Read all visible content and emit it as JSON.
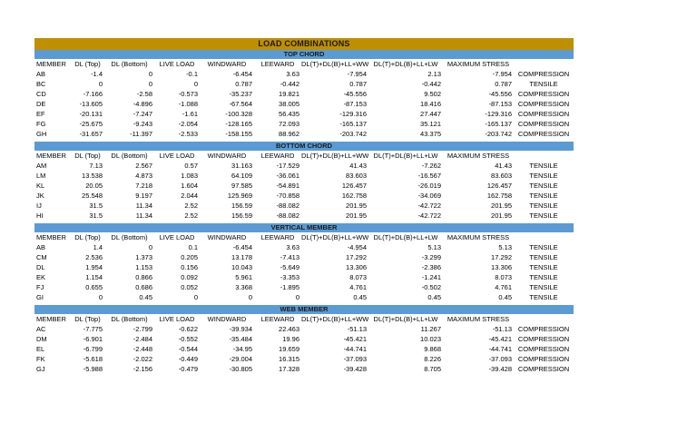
{
  "title": "LOAD COMBINATIONS",
  "columns": [
    "MEMBER",
    "DL (Top)",
    "DL (Bottom)",
    "LIVE LOAD",
    "WINDWARD",
    "LEEWARD",
    "DL(T)+DL(B)+LL+WW",
    "DL(T)+DL(B)+LL+LW",
    "MAXIMUM STRESS",
    ""
  ],
  "colors": {
    "title_bg": "#BF8F00",
    "section_bg": "#5B9BD5",
    "text": "#000000",
    "page_bg": "#FFFFFF"
  },
  "sections": [
    {
      "name": "TOP CHORD",
      "rows": [
        {
          "member": "AB",
          "values": [
            "-1.4",
            "0",
            "-0.1",
            "-6.454",
            "3.63",
            "-7.954",
            "2.13",
            "-7.954"
          ],
          "type": "COMPRESSION"
        },
        {
          "member": "BC",
          "values": [
            "0",
            "0",
            "0",
            "0.787",
            "-0.442",
            "0.787",
            "-0.442",
            "0.787"
          ],
          "type": "TENSILE"
        },
        {
          "member": "CD",
          "values": [
            "-7.166",
            "-2.58",
            "-0.573",
            "-35.237",
            "19.821",
            "-45.556",
            "9.502",
            "-45.556"
          ],
          "type": "COMPRESSION"
        },
        {
          "member": "DE",
          "values": [
            "-13.605",
            "-4.896",
            "-1.088",
            "-67.564",
            "38.005",
            "-87.153",
            "18.416",
            "-87.153"
          ],
          "type": "COMPRESSION"
        },
        {
          "member": "EF",
          "values": [
            "-20.131",
            "-7.247",
            "-1.61",
            "-100.328",
            "56.435",
            "-129.316",
            "27.447",
            "-129.316"
          ],
          "type": "COMPRESSION"
        },
        {
          "member": "FG",
          "values": [
            "-25.675",
            "-9.243",
            "-2.054",
            "-128.165",
            "72.093",
            "-165.137",
            "35.121",
            "-165.137"
          ],
          "type": "COMPRESSION"
        },
        {
          "member": "GH",
          "values": [
            "-31.657",
            "-11.397",
            "-2.533",
            "-158.155",
            "88.962",
            "-203.742",
            "43.375",
            "-203.742"
          ],
          "type": "COMPRESSION"
        }
      ]
    },
    {
      "name": "BOTTOM CHORD",
      "rows": [
        {
          "member": "AM",
          "values": [
            "7.13",
            "2.567",
            "0.57",
            "31.163",
            "-17.529",
            "41.43",
            "-7.262",
            "41.43"
          ],
          "type": "TENSILE"
        },
        {
          "member": "LM",
          "values": [
            "13.538",
            "4.873",
            "1.083",
            "64.109",
            "-36.061",
            "83.603",
            "-16.567",
            "83.603"
          ],
          "type": "TENSILE"
        },
        {
          "member": "KL",
          "values": [
            "20.05",
            "7.218",
            "1.604",
            "97.585",
            "-54.891",
            "126.457",
            "-26.019",
            "126.457"
          ],
          "type": "TENSILE"
        },
        {
          "member": "JK",
          "values": [
            "25.548",
            "9.197",
            "2.044",
            "125.969",
            "-70.858",
            "162.758",
            "-34.069",
            "162.758"
          ],
          "type": "TENSILE"
        },
        {
          "member": "IJ",
          "values": [
            "31.5",
            "11.34",
            "2.52",
            "156.59",
            "-88.082",
            "201.95",
            "-42.722",
            "201.95"
          ],
          "type": "TENSILE"
        },
        {
          "member": "HI",
          "values": [
            "31.5",
            "11.34",
            "2.52",
            "156.59",
            "-88.082",
            "201.95",
            "-42.722",
            "201.95"
          ],
          "type": "TENSILE"
        }
      ]
    },
    {
      "name": "VERTICAL MEMBER",
      "rows": [
        {
          "member": "AB",
          "values": [
            "1.4",
            "0",
            "0.1",
            "-6.454",
            "3.63",
            "-4.954",
            "5.13",
            "5.13"
          ],
          "type": "TENSILE"
        },
        {
          "member": "CM",
          "values": [
            "2.536",
            "1.373",
            "0.205",
            "13.178",
            "-7.413",
            "17.292",
            "-3.299",
            "17.292"
          ],
          "type": "TENSILE"
        },
        {
          "member": "DL",
          "values": [
            "1.954",
            "1.153",
            "0.156",
            "10.043",
            "-5.649",
            "13.306",
            "-2.386",
            "13.306"
          ],
          "type": "TENSILE"
        },
        {
          "member": "EK",
          "values": [
            "1.154",
            "0.866",
            "0.092",
            "5.961",
            "-3.353",
            "8.073",
            "-1.241",
            "8.073"
          ],
          "type": "TENSILE"
        },
        {
          "member": "FJ",
          "values": [
            "0.655",
            "0.686",
            "0.052",
            "3.368",
            "-1.895",
            "4.761",
            "-0.502",
            "4.761"
          ],
          "type": "TENSILE"
        },
        {
          "member": "GI",
          "values": [
            "0",
            "0.45",
            "0",
            "0",
            "0",
            "0.45",
            "0.45",
            "0.45"
          ],
          "type": "TENSILE"
        }
      ]
    },
    {
      "name": "WEB MEMBER",
      "rows": [
        {
          "member": "AC",
          "values": [
            "-7.775",
            "-2.799",
            "-0.622",
            "-39.934",
            "22.463",
            "-51.13",
            "11.267",
            "-51.13"
          ],
          "type": "COMPRESSION"
        },
        {
          "member": "DM",
          "values": [
            "-6.901",
            "-2.484",
            "-0.552",
            "-35.484",
            "19.96",
            "-45.421",
            "10.023",
            "-45.421"
          ],
          "type": "COMPRESSION"
        },
        {
          "member": "EL",
          "values": [
            "-6.799",
            "-2.448",
            "-0.544",
            "-34.95",
            "19.659",
            "-44.741",
            "9.868",
            "-44.741"
          ],
          "type": "COMPRESSION"
        },
        {
          "member": "FK",
          "values": [
            "-5.618",
            "-2.022",
            "-0.449",
            "-29.004",
            "16.315",
            "-37.093",
            "8.226",
            "-37.093"
          ],
          "type": "COMPRESSION"
        },
        {
          "member": "GJ",
          "values": [
            "-5.988",
            "-2.156",
            "-0.479",
            "-30.805",
            "17.328",
            "-39.428",
            "8.705",
            "-39.428"
          ],
          "type": "COMPRESSION"
        }
      ]
    }
  ]
}
